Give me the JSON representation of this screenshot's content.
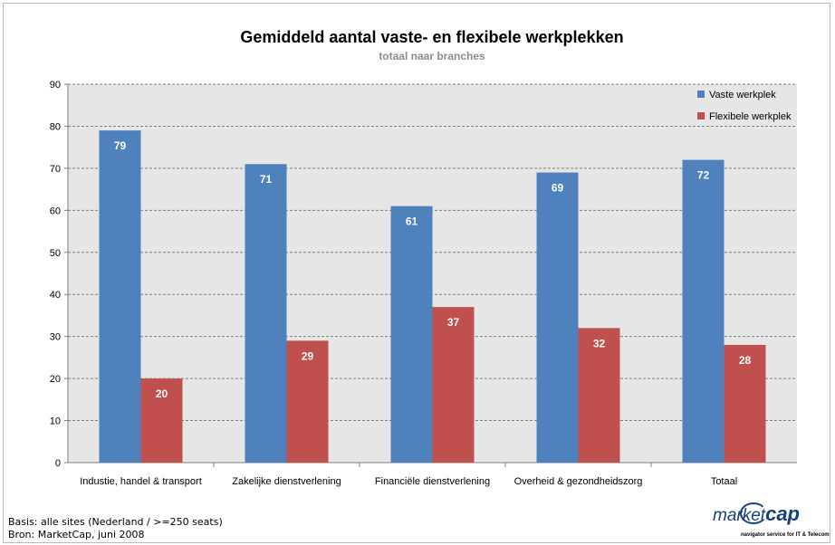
{
  "chart_data": {
    "type": "bar",
    "title": "Gemiddeld aantal vaste- en flexibele werkplekken",
    "subtitle": "totaal naar branches",
    "categories": [
      "Industie, handel & transport",
      "Zakelijke dienstverlening",
      "Financiële dienstverlening",
      "Overheid & gezondheidszorg",
      "Totaal"
    ],
    "series": [
      {
        "name": "Vaste werkplek",
        "values": [
          79,
          71,
          61,
          69,
          72
        ],
        "color": "#4f81bd"
      },
      {
        "name": "Flexibele werkplek",
        "values": [
          20,
          29,
          37,
          32,
          28
        ],
        "color": "#c0504d"
      }
    ],
    "ylim": [
      0,
      90
    ],
    "yticks": [
      0,
      10,
      20,
      30,
      40,
      50,
      60,
      70,
      80,
      90
    ],
    "grid": true,
    "legend_position": "top-right",
    "plot_background": "#e6e6e6"
  },
  "footer": {
    "line1": "Basis: alle sites (Nederland / >=250 seats)",
    "line2": "Bron: MarketCap, juni 2008"
  },
  "logo": {
    "word_market": "market",
    "word_cap": "cap",
    "tagline": "navigator service for IT & Telecom"
  }
}
